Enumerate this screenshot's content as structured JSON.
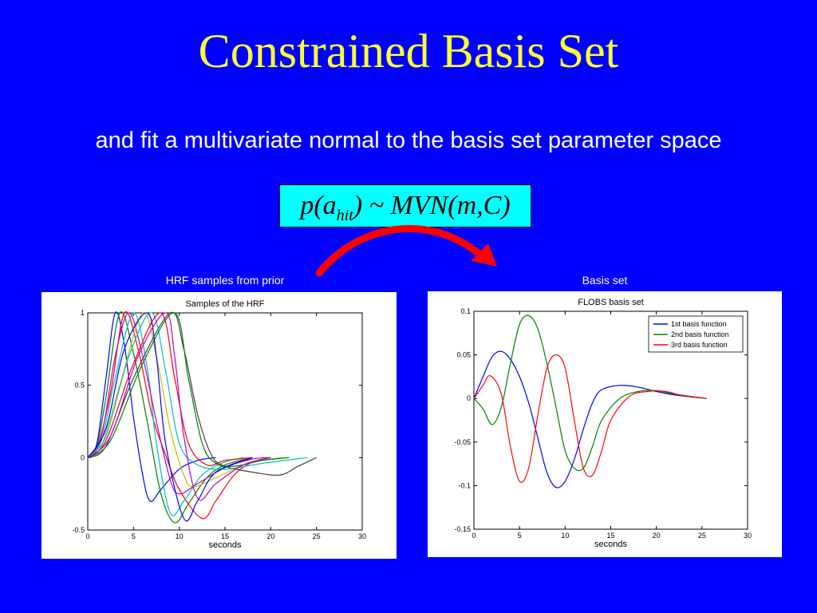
{
  "slide": {
    "title": "Constrained Basis Set",
    "subtitle": "and fit a multivariate normal to the basis set parameter space",
    "formula": {
      "p": "p(a",
      "sub": "hit",
      "rest": ") ~ MVN(m,C)"
    },
    "left_caption": "HRF samples from prior",
    "right_caption": "Basis set",
    "colors": {
      "background": "#0000ff",
      "title": "#ffff33",
      "formula_box": "#00ffff",
      "arrow": "#ff0000"
    }
  },
  "chart_data": [
    {
      "type": "line",
      "title": "Samples of the HRF",
      "xlabel": "seconds",
      "ylabel": "",
      "xlim": [
        0,
        30
      ],
      "ylim": [
        -0.5,
        1
      ],
      "xticks": [
        0,
        5,
        10,
        15,
        20,
        25,
        30
      ],
      "yticks": [
        -0.5,
        0,
        0.5,
        1
      ],
      "grid": false,
      "series": [
        {
          "color": "#0000ff",
          "peak_time": 3.0,
          "undershoot_time": 6.8,
          "undershoot": -0.3,
          "end": 14,
          "values": [
            [
              0,
              0
            ],
            [
              1,
              0.1
            ],
            [
              2,
              0.55
            ],
            [
              3,
              1.0
            ],
            [
              4,
              0.78
            ],
            [
              5,
              0.28
            ],
            [
              6,
              -0.12
            ],
            [
              6.8,
              -0.3
            ],
            [
              8,
              -0.22
            ],
            [
              10,
              -0.08
            ],
            [
              12,
              -0.02
            ],
            [
              14,
              0
            ]
          ]
        },
        {
          "color": "#008000",
          "peak_time": 3.5,
          "undershoot_time": 9.5,
          "undershoot": -0.45,
          "end": 18,
          "values": [
            [
              0,
              0
            ],
            [
              1,
              0.08
            ],
            [
              2,
              0.42
            ],
            [
              3.5,
              1.0
            ],
            [
              5,
              0.72
            ],
            [
              6.5,
              0.25
            ],
            [
              8,
              -0.25
            ],
            [
              9.5,
              -0.45
            ],
            [
              11,
              -0.32
            ],
            [
              13,
              -0.14
            ],
            [
              15,
              -0.05
            ],
            [
              18,
              0
            ]
          ]
        },
        {
          "color": "#ff0000",
          "peak_time": 4.0,
          "undershoot_time": 12.5,
          "undershoot": -0.42,
          "end": 20,
          "values": [
            [
              0,
              0
            ],
            [
              1,
              0.06
            ],
            [
              2.5,
              0.45
            ],
            [
              4,
              1.0
            ],
            [
              5.5,
              0.75
            ],
            [
              7,
              0.3
            ],
            [
              8.5,
              0.02
            ],
            [
              10,
              -0.22
            ],
            [
              12.5,
              -0.42
            ],
            [
              14,
              -0.3
            ],
            [
              16,
              -0.12
            ],
            [
              18,
              -0.03
            ],
            [
              20,
              0
            ]
          ]
        },
        {
          "color": "#00bfbf",
          "peak_time": 5.0,
          "undershoot_time": 9.0,
          "undershoot": -0.38,
          "end": 17,
          "values": [
            [
              0,
              0
            ],
            [
              1.5,
              0.12
            ],
            [
              3,
              0.55
            ],
            [
              5,
              1.0
            ],
            [
              6.5,
              0.62
            ],
            [
              7.5,
              0.1
            ],
            [
              9,
              -0.38
            ],
            [
              10.5,
              -0.3
            ],
            [
              12.5,
              -0.12
            ],
            [
              15,
              -0.03
            ],
            [
              17,
              0
            ]
          ]
        },
        {
          "color": "#bf00bf",
          "peak_time": 4.5,
          "undershoot_time": 10.0,
          "undershoot": -0.25,
          "end": 20,
          "values": [
            [
              0,
              0
            ],
            [
              1.5,
              0.15
            ],
            [
              3,
              0.7
            ],
            [
              4.5,
              1.0
            ],
            [
              6,
              0.7
            ],
            [
              7.5,
              0.25
            ],
            [
              9,
              -0.15
            ],
            [
              10,
              -0.25
            ],
            [
              12,
              -0.18
            ],
            [
              15,
              -0.07
            ],
            [
              18,
              -0.01
            ],
            [
              20,
              0
            ]
          ]
        },
        {
          "color": "#bfbf00",
          "peak_time": 6.0,
          "undershoot_time": 11.5,
          "undershoot": -0.2,
          "end": 22,
          "values": [
            [
              0,
              0
            ],
            [
              1.5,
              0.08
            ],
            [
              3.5,
              0.5
            ],
            [
              6,
              1.0
            ],
            [
              7.5,
              0.7
            ],
            [
              9,
              0.2
            ],
            [
              10.5,
              -0.12
            ],
            [
              11.5,
              -0.2
            ],
            [
              14,
              -0.14
            ],
            [
              17,
              -0.05
            ],
            [
              20,
              -0.01
            ],
            [
              22,
              0
            ]
          ]
        },
        {
          "color": "#404040",
          "peak_time": 9.0,
          "undershoot_time": 21.0,
          "undershoot": -0.12,
          "end": 25,
          "values": [
            [
              0,
              0
            ],
            [
              2,
              0.08
            ],
            [
              5,
              0.55
            ],
            [
              9,
              1.0
            ],
            [
              10.5,
              0.75
            ],
            [
              12,
              0.3
            ],
            [
              13.5,
              0.02
            ],
            [
              15,
              -0.06
            ],
            [
              18,
              -0.1
            ],
            [
              21,
              -0.12
            ],
            [
              23,
              -0.06
            ],
            [
              25,
              0
            ]
          ]
        },
        {
          "color": "#00bfbf",
          "peak_time": 7.0,
          "undershoot_time": 15.0,
          "undershoot": -0.08,
          "end": 24,
          "values": [
            [
              0,
              0
            ],
            [
              2,
              0.15
            ],
            [
              4.5,
              0.7
            ],
            [
              7,
              1.0
            ],
            [
              8.5,
              0.6
            ],
            [
              10,
              0.1
            ],
            [
              12,
              -0.05
            ],
            [
              15,
              -0.08
            ],
            [
              19,
              -0.04
            ],
            [
              24,
              0
            ]
          ]
        },
        {
          "color": "#ff0000",
          "peak_time": 8.0,
          "undershoot_time": 13.0,
          "undershoot": -0.05,
          "end": 18,
          "values": [
            [
              0,
              0
            ],
            [
              2,
              0.12
            ],
            [
              5,
              0.65
            ],
            [
              8,
              1.0
            ],
            [
              9.5,
              0.55
            ],
            [
              11,
              0.1
            ],
            [
              13,
              -0.05
            ],
            [
              15,
              -0.02
            ],
            [
              18,
              0
            ]
          ]
        },
        {
          "color": "#008000",
          "peak_time": 9.5,
          "undershoot_time": 16.0,
          "undershoot": -0.06,
          "end": 22,
          "values": [
            [
              0,
              0
            ],
            [
              2.5,
              0.12
            ],
            [
              6,
              0.65
            ],
            [
              9.5,
              1.0
            ],
            [
              11,
              0.55
            ],
            [
              12.5,
              0.1
            ],
            [
              14,
              -0.04
            ],
            [
              16,
              -0.06
            ],
            [
              19,
              -0.02
            ],
            [
              22,
              0
            ]
          ]
        },
        {
          "color": "#0000ff",
          "peak_time": 6.5,
          "undershoot_time": 10.5,
          "undershoot": -0.42,
          "end": 18,
          "values": [
            [
              0,
              0
            ],
            [
              2,
              0.2
            ],
            [
              4,
              0.75
            ],
            [
              6.5,
              1.0
            ],
            [
              7.5,
              0.7
            ],
            [
              8.5,
              0.1
            ],
            [
              10.5,
              -0.42
            ],
            [
              12,
              -0.3
            ],
            [
              14,
              -0.1
            ],
            [
              18,
              0
            ]
          ]
        },
        {
          "color": "#bf00bf",
          "peak_time": 8.5,
          "undershoot_time": 12.0,
          "undershoot": -0.28,
          "end": 20,
          "values": [
            [
              0,
              0
            ],
            [
              2.5,
              0.15
            ],
            [
              5.5,
              0.7
            ],
            [
              8.5,
              1.0
            ],
            [
              9.5,
              0.7
            ],
            [
              10.5,
              0.15
            ],
            [
              12,
              -0.28
            ],
            [
              14,
              -0.18
            ],
            [
              17,
              -0.05
            ],
            [
              20,
              0
            ]
          ]
        }
      ]
    },
    {
      "type": "line",
      "title": "FLOBS basis set",
      "xlabel": "seconds",
      "ylabel": "",
      "xlim": [
        0,
        30
      ],
      "ylim": [
        -0.15,
        0.1
      ],
      "xticks": [
        0,
        5,
        10,
        15,
        20,
        25,
        30
      ],
      "yticks": [
        -0.15,
        -0.1,
        -0.05,
        0,
        0.05,
        0.1
      ],
      "grid": false,
      "legend": "top-right",
      "series": [
        {
          "name": "1st basis function",
          "color": "#0000ff",
          "values": [
            [
              0,
              0
            ],
            [
              1,
              0.025
            ],
            [
              2,
              0.048
            ],
            [
              3,
              0.054
            ],
            [
              4,
              0.045
            ],
            [
              5,
              0.025
            ],
            [
              6,
              -0.005
            ],
            [
              7,
              -0.045
            ],
            [
              8,
              -0.085
            ],
            [
              9,
              -0.102
            ],
            [
              10,
              -0.095
            ],
            [
              11,
              -0.07
            ],
            [
              12,
              -0.035
            ],
            [
              13,
              -0.005
            ],
            [
              14,
              0.01
            ],
            [
              16,
              0.015
            ],
            [
              18,
              0.013
            ],
            [
              20,
              0.008
            ],
            [
              22,
              0.004
            ],
            [
              25.5,
              0
            ]
          ]
        },
        {
          "name": "2nd basis function",
          "color": "#008000",
          "values": [
            [
              0,
              0
            ],
            [
              1,
              -0.012
            ],
            [
              2,
              -0.03
            ],
            [
              3,
              -0.01
            ],
            [
              4,
              0.04
            ],
            [
              5,
              0.085
            ],
            [
              6,
              0.095
            ],
            [
              7,
              0.08
            ],
            [
              8,
              0.04
            ],
            [
              9,
              -0.01
            ],
            [
              10,
              -0.06
            ],
            [
              11,
              -0.08
            ],
            [
              12,
              -0.08
            ],
            [
              13,
              -0.055
            ],
            [
              14,
              -0.025
            ],
            [
              16,
              0.0
            ],
            [
              18,
              0.008
            ],
            [
              20,
              0.009
            ],
            [
              22,
              0.005
            ],
            [
              25.5,
              0
            ]
          ]
        },
        {
          "name": "3rd basis function",
          "color": "#ff0000",
          "values": [
            [
              0,
              0
            ],
            [
              1,
              0.015
            ],
            [
              1.8,
              0.026
            ],
            [
              3,
              0.005
            ],
            [
              4,
              -0.055
            ],
            [
              5,
              -0.095
            ],
            [
              6,
              -0.08
            ],
            [
              7,
              -0.02
            ],
            [
              8,
              0.035
            ],
            [
              9,
              0.05
            ],
            [
              10,
              0.035
            ],
            [
              11,
              -0.025
            ],
            [
              12,
              -0.08
            ],
            [
              13,
              -0.088
            ],
            [
              14,
              -0.06
            ],
            [
              15,
              -0.025
            ],
            [
              17,
              0.002
            ],
            [
              19,
              0.008
            ],
            [
              21,
              0.008
            ],
            [
              23,
              0.003
            ],
            [
              25.5,
              0
            ]
          ]
        }
      ]
    }
  ]
}
